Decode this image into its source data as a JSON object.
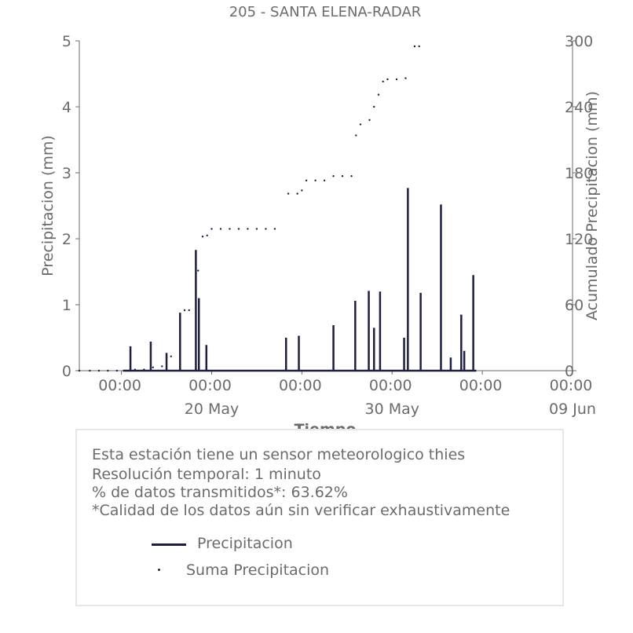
{
  "chart_data": {
    "type": "line",
    "title": "205 - SANTA ELENA-RADAR",
    "xlabel": "Tiempo",
    "ylabel": "Precipitacion (mm)",
    "y2label": "Acumulado Precipitacion (mm)",
    "ylim": [
      0,
      5
    ],
    "y2lim": [
      0,
      300
    ],
    "yticks": [
      "0",
      "1",
      "2",
      "3",
      "4",
      "5"
    ],
    "y2ticks": [
      "0",
      "60",
      "120",
      "180",
      "240",
      "300"
    ],
    "xlim": [
      "2024-05-12 16:00",
      "2024-06-09 00:00"
    ],
    "xticks": [
      {
        "time": "2024-05-15 00:00",
        "label": "00:00",
        "sublabel": ""
      },
      {
        "time": "2024-05-20 00:00",
        "label": "00:00",
        "sublabel": "20 May"
      },
      {
        "time": "2024-05-25 00:00",
        "label": "00:00",
        "sublabel": ""
      },
      {
        "time": "2024-05-30 00:00",
        "label": "00:00",
        "sublabel": "30 May"
      },
      {
        "time": "2024-06-04 00:00",
        "label": "00:00",
        "sublabel": ""
      },
      {
        "time": "2024-06-09 00:00",
        "label": "00:00",
        "sublabel": "09 Jun"
      }
    ],
    "grid": false,
    "series": [
      {
        "name": "Precipitacion",
        "style": "line",
        "axis": "left",
        "color": "#1c1f3f",
        "points": [
          [
            "2024-05-15 12:00",
            0.37
          ],
          [
            "2024-05-16 15:00",
            0.44
          ],
          [
            "2024-05-17 12:00",
            0.27
          ],
          [
            "2024-05-18 06:00",
            0.88
          ],
          [
            "2024-05-19 03:00",
            1.83
          ],
          [
            "2024-05-19 07:00",
            1.1
          ],
          [
            "2024-05-19 17:00",
            0.39
          ],
          [
            "2024-05-24 03:00",
            0.5
          ],
          [
            "2024-05-24 20:00",
            0.53
          ],
          [
            "2024-05-26 18:00",
            0.69
          ],
          [
            "2024-05-27 23:00",
            1.06
          ],
          [
            "2024-05-28 17:00",
            1.21
          ],
          [
            "2024-05-29 00:00",
            0.65
          ],
          [
            "2024-05-29 08:00",
            1.2
          ],
          [
            "2024-05-30 16:00",
            0.5
          ],
          [
            "2024-05-30 21:00",
            2.77
          ],
          [
            "2024-05-31 14:00",
            1.18
          ],
          [
            "2024-06-01 17:00",
            2.52
          ],
          [
            "2024-06-02 06:00",
            0.2
          ],
          [
            "2024-06-02 20:00",
            0.85
          ],
          [
            "2024-06-03 00:00",
            0.3
          ],
          [
            "2024-06-03 12:00",
            1.45
          ]
        ]
      },
      {
        "name": "Suma Precipitacion",
        "style": "dots",
        "axis": "right",
        "color": "#1c1f3f",
        "points": [
          [
            "2024-05-12 16:00",
            0
          ],
          [
            "2024-05-13 06:00",
            0
          ],
          [
            "2024-05-13 18:00",
            0
          ],
          [
            "2024-05-14 06:00",
            0
          ],
          [
            "2024-05-14 18:00",
            0
          ],
          [
            "2024-05-15 06:00",
            0
          ],
          [
            "2024-05-15 18:00",
            1
          ],
          [
            "2024-05-16 06:00",
            1
          ],
          [
            "2024-05-16 18:00",
            3
          ],
          [
            "2024-05-17 06:00",
            4
          ],
          [
            "2024-05-17 12:00",
            12
          ],
          [
            "2024-05-17 18:00",
            13
          ],
          [
            "2024-05-18 06:00",
            45
          ],
          [
            "2024-05-18 12:00",
            55
          ],
          [
            "2024-05-18 18:00",
            55
          ],
          [
            "2024-05-19 06:00",
            91
          ],
          [
            "2024-05-19 12:00",
            122
          ],
          [
            "2024-05-19 18:00",
            123
          ],
          [
            "2024-05-20 00:00",
            129
          ],
          [
            "2024-05-20 12:00",
            129
          ],
          [
            "2024-05-21 00:00",
            129
          ],
          [
            "2024-05-21 12:00",
            129
          ],
          [
            "2024-05-22 00:00",
            129
          ],
          [
            "2024-05-22 12:00",
            129
          ],
          [
            "2024-05-23 00:00",
            129
          ],
          [
            "2024-05-23 12:00",
            129
          ],
          [
            "2024-05-24 06:00",
            161
          ],
          [
            "2024-05-24 18:00",
            161
          ],
          [
            "2024-05-25 00:00",
            164
          ],
          [
            "2024-05-25 06:00",
            173
          ],
          [
            "2024-05-25 18:00",
            173
          ],
          [
            "2024-05-26 06:00",
            173
          ],
          [
            "2024-05-26 18:00",
            177
          ],
          [
            "2024-05-27 06:00",
            177
          ],
          [
            "2024-05-27 18:00",
            177
          ],
          [
            "2024-05-28 00:00",
            214
          ],
          [
            "2024-05-28 06:00",
            224
          ],
          [
            "2024-05-28 18:00",
            228
          ],
          [
            "2024-05-29 00:00",
            240
          ],
          [
            "2024-05-29 06:00",
            251
          ],
          [
            "2024-05-29 12:00",
            263
          ],
          [
            "2024-05-29 18:00",
            265
          ],
          [
            "2024-05-30 06:00",
            265
          ],
          [
            "2024-05-30 18:00",
            266
          ],
          [
            "2024-05-31 06:00",
            295
          ],
          [
            "2024-05-31 12:00",
            295
          ]
        ]
      }
    ],
    "legend_placement": "below"
  },
  "info": {
    "line1": "Esta estación tiene un sensor meteorologico thies",
    "line2": "Resolución temporal: 1 minuto",
    "line3": "% de datos transmitidos*: 63.62%",
    "line4": "*Calidad de los datos aún sin verificar exhaustivamente"
  },
  "legend": {
    "item1": "Precipitacion",
    "item2": "Suma Precipitacion"
  }
}
